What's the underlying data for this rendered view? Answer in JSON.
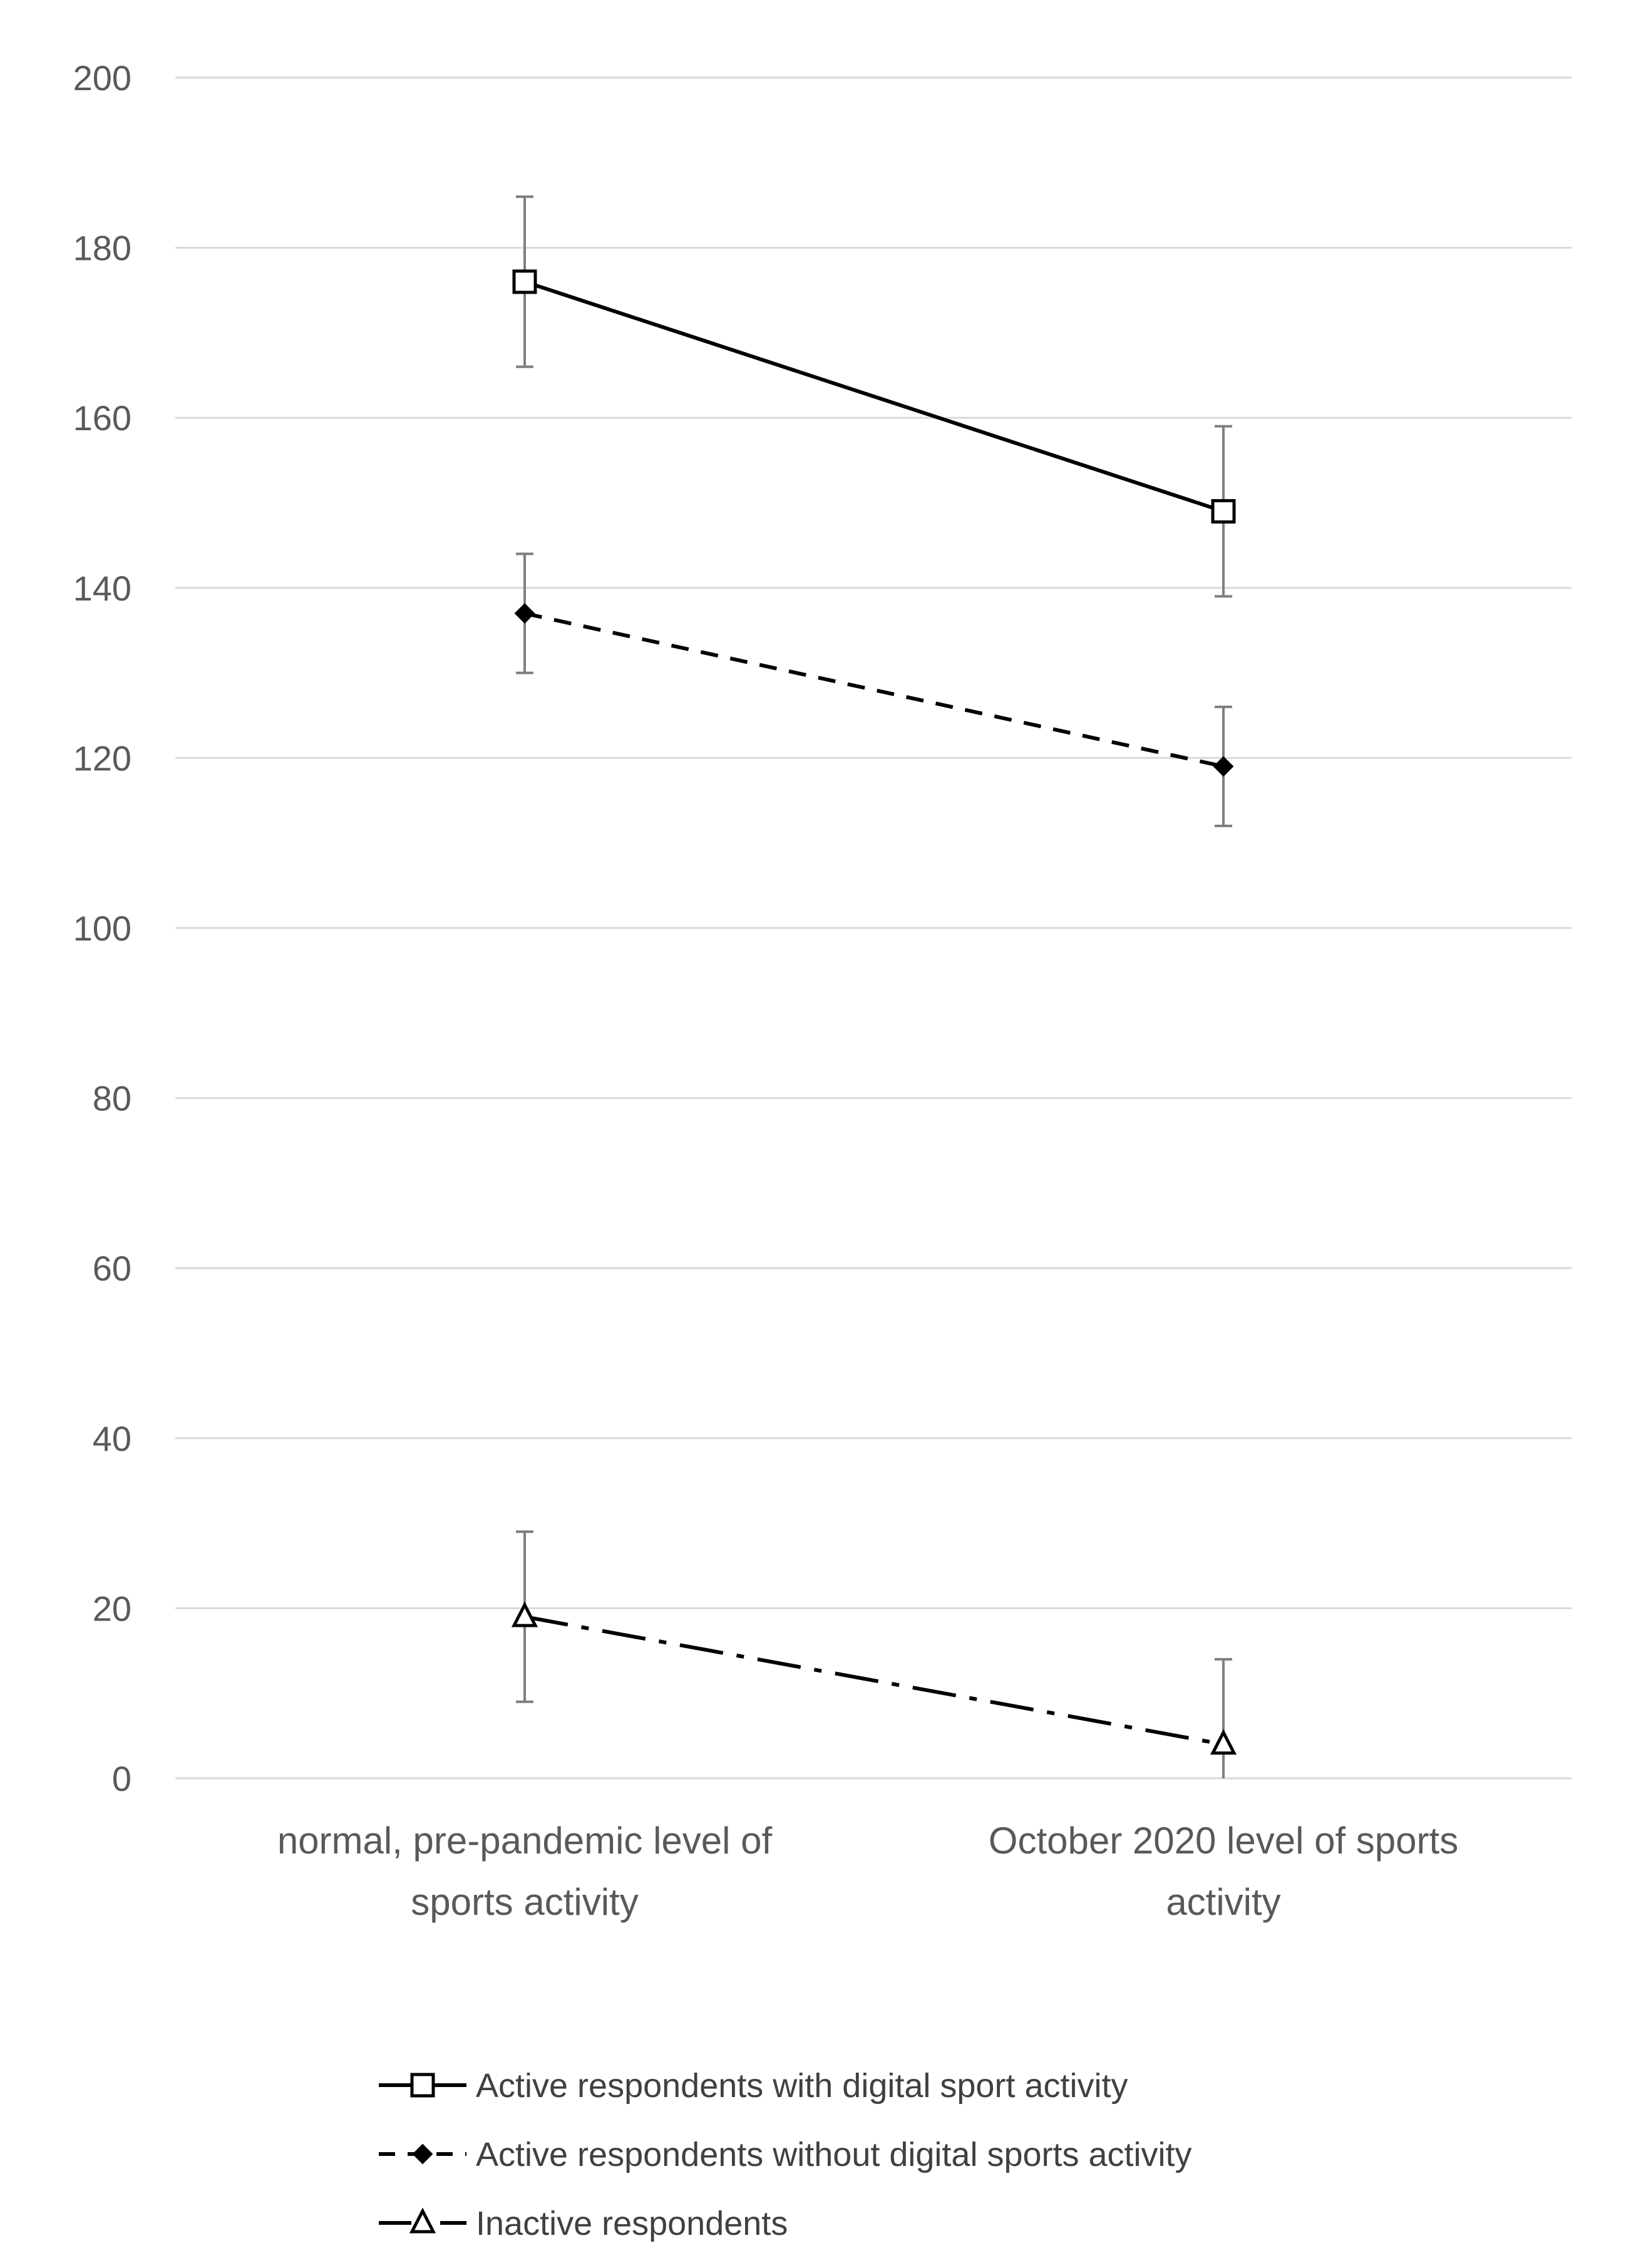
{
  "chart_data": {
    "type": "line",
    "title": "",
    "xlabel": "",
    "ylabel": "",
    "ylim": [
      0,
      200
    ],
    "yticks": [
      0,
      20,
      40,
      60,
      80,
      100,
      120,
      140,
      160,
      180,
      200
    ],
    "grid": true,
    "legend_position": "bottom",
    "categories": [
      [
        "normal, pre-pandemic level of",
        "sports activity"
      ],
      [
        "October 2020 level of sports",
        "activity"
      ]
    ],
    "series": [
      {
        "name": "Active respondents with digital sport activity",
        "values": [
          176,
          149
        ],
        "error": [
          10,
          10
        ],
        "line_style": "solid",
        "marker": "open-square",
        "color": "#000000"
      },
      {
        "name": "Active respondents without digital sports activity",
        "values": [
          137,
          119
        ],
        "error": [
          7,
          7
        ],
        "line_style": "dashed",
        "marker": "filled-diamond",
        "color": "#000000"
      },
      {
        "name": "Inactive respondents",
        "values": [
          19,
          4
        ],
        "error": [
          10,
          10
        ],
        "line_style": "dash-dot",
        "marker": "open-triangle",
        "color": "#000000"
      }
    ]
  }
}
